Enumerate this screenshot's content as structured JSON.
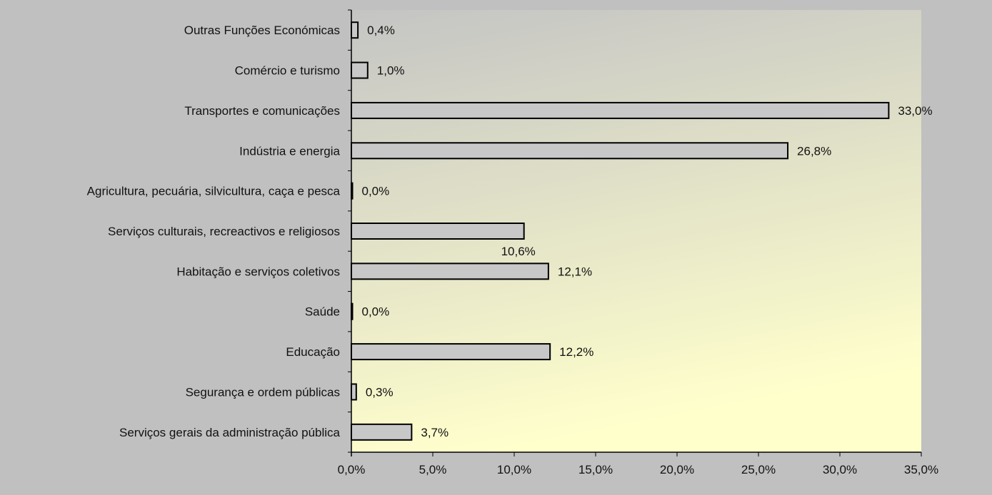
{
  "chart_data": {
    "type": "bar",
    "orientation": "horizontal",
    "categories": [
      "Outras Funções Económicas",
      "Comércio e turismo",
      "Transportes e comunicações",
      "Indústria e energia",
      "Agricultura, pecuária, silvicultura, caça e pesca",
      "Serviços culturais, recreactivos e religiosos",
      "Habitação e serviços coletivos",
      "Saúde",
      "Educação",
      "Segurança e ordem públicas",
      "Serviços gerais da administração pública"
    ],
    "values": [
      0.4,
      1.0,
      33.0,
      26.8,
      0.0,
      10.6,
      12.1,
      0.0,
      12.2,
      0.3,
      3.7
    ],
    "value_labels": [
      "0,4%",
      "1,0%",
      "33,0%",
      "26,8%",
      "0,0%",
      "10,6%",
      "12,1%",
      "0,0%",
      "12,2%",
      "0,3%",
      "3,7%"
    ],
    "xlim": [
      0,
      35
    ],
    "x_ticks": [
      0,
      5,
      10,
      15,
      20,
      25,
      30,
      35
    ],
    "x_tick_labels": [
      "0,0%",
      "5,0%",
      "10,0%",
      "15,0%",
      "20,0%",
      "25,0%",
      "30,0%",
      "35,0%"
    ],
    "title": "",
    "xlabel": "",
    "ylabel": "",
    "grid": false,
    "legend": "none",
    "colors": {
      "bar_fill": "#c8c8c8",
      "bar_stroke": "#000000",
      "plot_bg_top": "#c4c4c4",
      "plot_bg_bottom": "#ffffcc",
      "page_bg": "#c0c0c0"
    }
  }
}
